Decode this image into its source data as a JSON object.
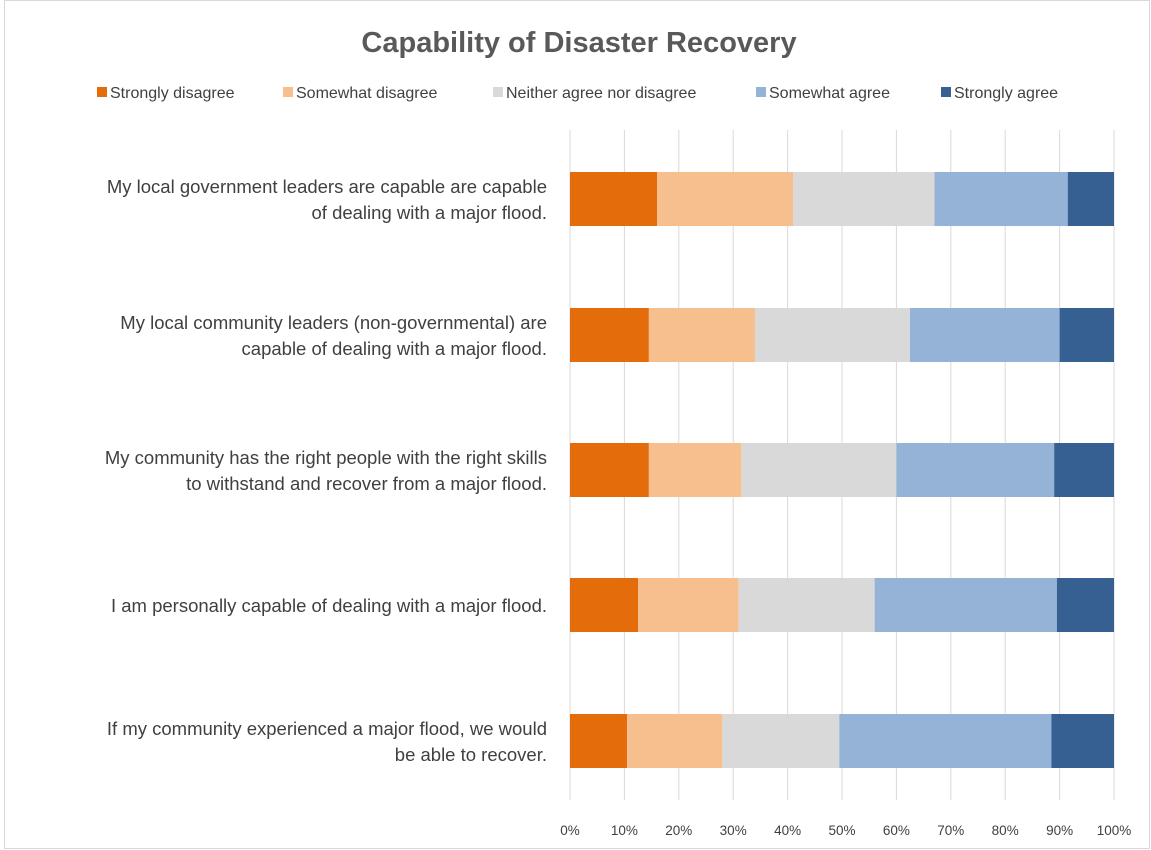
{
  "chart_data": {
    "type": "bar",
    "orientation": "horizontal",
    "stacked": "percent",
    "title": "Capability of Disaster Recovery",
    "xlabel": "",
    "ylabel": "",
    "xlim": [
      0,
      100
    ],
    "grid": "vertical",
    "legend_position": "top",
    "categories": [
      {
        "lines": [
          "My local government leaders are capable are capable",
          "of dealing with a major flood."
        ]
      },
      {
        "lines": [
          "My local community leaders (non-governmental) are",
          "capable of dealing with a major flood."
        ]
      },
      {
        "lines": [
          "My community has the right people with the right skills",
          "to withstand and recover from a major flood."
        ]
      },
      {
        "lines": [
          "I am personally capable of dealing with a major flood."
        ]
      },
      {
        "lines": [
          "If my community experienced a major flood, we would",
          "be able to recover."
        ]
      }
    ],
    "series": [
      {
        "name": "Strongly disagree",
        "color": "#E46C0A",
        "values": [
          16,
          14.5,
          14.5,
          12.5,
          10.5
        ]
      },
      {
        "name": "Somewhat disagree",
        "color": "#F8BF8E",
        "values": [
          25,
          19.5,
          17,
          18.5,
          17.5
        ]
      },
      {
        "name": "Neither agree nor disagree",
        "color": "#D9D9D9",
        "values": [
          26,
          28.5,
          28.5,
          25,
          21.5
        ]
      },
      {
        "name": "Somewhat agree",
        "color": "#95B3D7",
        "values": [
          24.5,
          27.5,
          29,
          33.5,
          39
        ]
      },
      {
        "name": "Strongly agree",
        "color": "#366092",
        "values": [
          8.5,
          10,
          11,
          10.5,
          11.5
        ]
      }
    ],
    "tick_labels": [
      "0%",
      "10%",
      "20%",
      "30%",
      "40%",
      "50%",
      "60%",
      "70%",
      "80%",
      "90%",
      "100%"
    ]
  }
}
